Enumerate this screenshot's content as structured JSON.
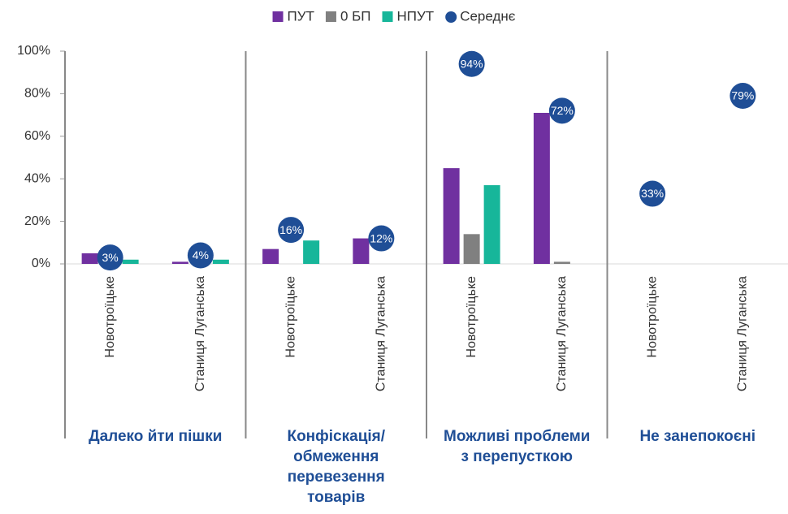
{
  "chart_data": {
    "type": "bar",
    "groups": [
      "Далеко йти пішки",
      "Конфіскація/обмеження перевезення товарів",
      "Можливі проблеми з перепусткою",
      "Не занепокоєні"
    ],
    "categories": [
      "Новотроїцьке",
      "Станиця Луганська",
      "Новотроїцьке",
      "Станиця Луганська",
      "Новотроїцьке",
      "Станиця Луганська",
      "Новотроїцьке",
      "Станиця Луганська"
    ],
    "series": [
      {
        "name": "ПУТ",
        "color": "#7030a0",
        "values": [
          5,
          1,
          7,
          12,
          45,
          71,
          null,
          null
        ]
      },
      {
        "name": "0 БП",
        "color": "#808080",
        "values": [
          0,
          0,
          0,
          0,
          14,
          1,
          null,
          null
        ]
      },
      {
        "name": "НПУТ",
        "color": "#17b69a",
        "values": [
          2,
          2,
          11,
          0,
          37,
          0,
          null,
          null
        ]
      },
      {
        "name": "Середнє",
        "color": "#1f4e96",
        "marker": "circle",
        "values": [
          3,
          4,
          16,
          12,
          94,
          72,
          33,
          79
        ],
        "value_labels": [
          "3%",
          "4%",
          "16%",
          "12%",
          "94%",
          "72%",
          "33%",
          "79%"
        ]
      }
    ],
    "ylim": [
      0,
      100
    ],
    "yticks": [
      {
        "value": 0,
        "label": "0%"
      },
      {
        "value": 20,
        "label": "20%"
      },
      {
        "value": 40,
        "label": "40%"
      },
      {
        "value": 60,
        "label": "60%"
      },
      {
        "value": 80,
        "label": "80%"
      },
      {
        "value": 100,
        "label": "100%"
      }
    ],
    "legend": "top",
    "grid": false
  }
}
